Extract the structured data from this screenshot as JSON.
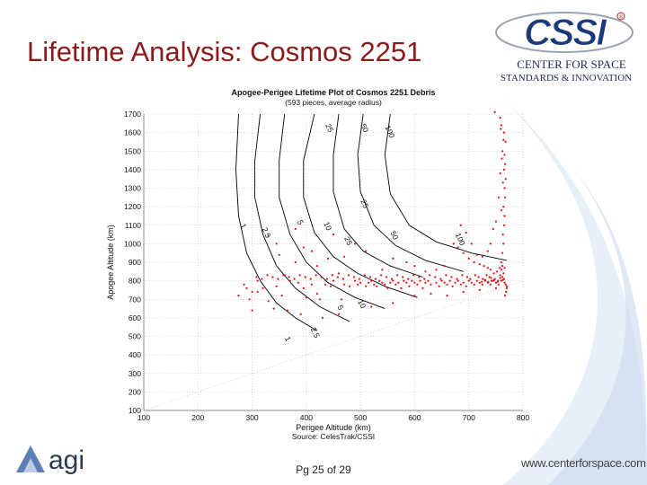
{
  "slide": {
    "title": "Lifetime Analysis: Cosmos 2251",
    "page_number": "Pg 25 of 29",
    "footer_url": "www.centerforspace.com"
  },
  "logos": {
    "cssi": {
      "acronym": "CSSI",
      "line1": "CENTER FOR SPACE",
      "line2": "STANDARDS & INNOVATION",
      "registered": "®"
    },
    "agi": {
      "text": "agi"
    }
  },
  "colors": {
    "title": "#8b1a1a",
    "points": "#e01010",
    "contours": "#000000",
    "swoosh": "#dde8f5"
  },
  "chart_data": {
    "type": "scatter",
    "title": "Apogee-Perigee Lifetime Plot of Cosmos 2251 Debris",
    "subtitle": "(593 pieces, average radius)",
    "xlabel": "Perigee Altitude (km)",
    "ylabel": "Apogee Altitude (km)",
    "source": "Source: CelesTrak/CSSI",
    "xlim": [
      100,
      800
    ],
    "ylim": [
      100,
      1700
    ],
    "xticks": [
      100,
      200,
      300,
      400,
      500,
      600,
      700,
      800
    ],
    "yticks": [
      100,
      200,
      300,
      400,
      500,
      600,
      700,
      800,
      900,
      1000,
      1100,
      1200,
      1300,
      1400,
      1500,
      1600,
      1700
    ],
    "grid": "dotted",
    "contours": [
      {
        "label": "1",
        "points": [
          [
            275,
            1700
          ],
          [
            270,
            1400
          ],
          [
            275,
            1150
          ],
          [
            290,
            950
          ],
          [
            315,
            800
          ],
          [
            345,
            680
          ],
          [
            380,
            600
          ],
          [
            420,
            530
          ]
        ]
      },
      {
        "label": "2.5",
        "points": [
          [
            315,
            1700
          ],
          [
            305,
            1450
          ],
          [
            305,
            1250
          ],
          [
            320,
            1050
          ],
          [
            345,
            880
          ],
          [
            380,
            760
          ],
          [
            425,
            660
          ],
          [
            480,
            580
          ]
        ]
      },
      {
        "label": "5",
        "points": [
          [
            360,
            1700
          ],
          [
            350,
            1450
          ],
          [
            350,
            1250
          ],
          [
            370,
            1050
          ],
          [
            400,
            900
          ],
          [
            440,
            790
          ],
          [
            490,
            710
          ],
          [
            545,
            650
          ]
        ]
      },
      {
        "label": "10",
        "points": [
          [
            415,
            1700
          ],
          [
            395,
            1450
          ],
          [
            395,
            1250
          ],
          [
            415,
            1060
          ],
          [
            450,
            930
          ],
          [
            495,
            840
          ],
          [
            545,
            770
          ],
          [
            605,
            710
          ]
        ]
      },
      {
        "label": "25",
        "points": [
          [
            460,
            1700
          ],
          [
            450,
            1480
          ],
          [
            450,
            1280
          ],
          [
            470,
            1080
          ],
          [
            505,
            960
          ],
          [
            555,
            880
          ],
          [
            615,
            820
          ]
        ]
      },
      {
        "label": "50",
        "points": [
          [
            505,
            1700
          ],
          [
            495,
            1480
          ],
          [
            500,
            1280
          ],
          [
            525,
            1100
          ],
          [
            565,
            990
          ],
          [
            620,
            910
          ],
          [
            690,
            850
          ]
        ]
      },
      {
        "label": "100",
        "points": [
          [
            555,
            1700
          ],
          [
            545,
            1480
          ],
          [
            555,
            1270
          ],
          [
            590,
            1100
          ],
          [
            640,
            1010
          ],
          [
            705,
            950
          ],
          [
            770,
            910
          ]
        ]
      }
    ],
    "contour_labels": [
      {
        "label": "25",
        "x": 435,
        "y": 1640
      },
      {
        "label": "50",
        "x": 500,
        "y": 1640
      },
      {
        "label": "100",
        "x": 545,
        "y": 1630
      },
      {
        "label": "1",
        "x": 278,
        "y": 1100
      },
      {
        "label": "2.5",
        "x": 318,
        "y": 1080
      },
      {
        "label": "5",
        "x": 383,
        "y": 1120
      },
      {
        "label": "10",
        "x": 432,
        "y": 1110
      },
      {
        "label": "25",
        "x": 470,
        "y": 1030
      },
      {
        "label": "50",
        "x": 555,
        "y": 1060
      },
      {
        "label": "100",
        "x": 675,
        "y": 1050
      },
      {
        "label": "25",
        "x": 500,
        "y": 1230
      },
      {
        "label": "10",
        "x": 495,
        "y": 690
      },
      {
        "label": "5",
        "x": 457,
        "y": 660
      },
      {
        "label": "2.5",
        "x": 408,
        "y": 540
      },
      {
        "label": "1",
        "x": 360,
        "y": 490
      }
    ],
    "series": [
      {
        "points": [
          [
            295,
            700
          ],
          [
            290,
            760
          ],
          [
            300,
            740
          ],
          [
            310,
            800
          ],
          [
            320,
            760
          ],
          [
            330,
            690
          ],
          [
            345,
            770
          ],
          [
            355,
            720
          ],
          [
            365,
            640
          ],
          [
            370,
            800
          ],
          [
            385,
            790
          ],
          [
            395,
            760
          ],
          [
            400,
            710
          ],
          [
            410,
            780
          ],
          [
            420,
            730
          ],
          [
            425,
            700
          ],
          [
            435,
            780
          ],
          [
            445,
            770
          ],
          [
            450,
            800
          ],
          [
            460,
            840
          ],
          [
            465,
            700
          ],
          [
            470,
            780
          ],
          [
            480,
            770
          ],
          [
            490,
            800
          ],
          [
            495,
            780
          ],
          [
            500,
            790
          ],
          [
            510,
            770
          ],
          [
            515,
            790
          ],
          [
            520,
            800
          ],
          [
            525,
            780
          ],
          [
            530,
            770
          ],
          [
            535,
            800
          ],
          [
            540,
            790
          ],
          [
            545,
            780
          ],
          [
            550,
            760
          ],
          [
            555,
            790
          ],
          [
            560,
            800
          ],
          [
            565,
            780
          ],
          [
            570,
            790
          ],
          [
            575,
            760
          ],
          [
            580,
            800
          ],
          [
            585,
            790
          ],
          [
            590,
            770
          ],
          [
            595,
            800
          ],
          [
            600,
            790
          ],
          [
            605,
            780
          ],
          [
            610,
            800
          ],
          [
            615,
            760
          ],
          [
            620,
            790
          ],
          [
            625,
            800
          ],
          [
            630,
            780
          ],
          [
            640,
            790
          ],
          [
            645,
            770
          ],
          [
            650,
            800
          ],
          [
            655,
            790
          ],
          [
            660,
            780
          ],
          [
            665,
            800
          ],
          [
            670,
            770
          ],
          [
            675,
            790
          ],
          [
            680,
            800
          ],
          [
            685,
            780
          ],
          [
            690,
            790
          ],
          [
            695,
            770
          ],
          [
            700,
            800
          ],
          [
            705,
            790
          ],
          [
            710,
            780
          ],
          [
            715,
            800
          ],
          [
            720,
            790
          ],
          [
            725,
            780
          ],
          [
            730,
            800
          ],
          [
            735,
            790
          ],
          [
            740,
            780
          ],
          [
            745,
            800
          ],
          [
            750,
            790
          ],
          [
            755,
            780
          ],
          [
            760,
            800
          ],
          [
            762,
            820
          ],
          [
            765,
            810
          ],
          [
            758,
            830
          ],
          [
            752,
            850
          ],
          [
            746,
            840
          ],
          [
            740,
            860
          ],
          [
            735,
            870
          ],
          [
            728,
            880
          ],
          [
            720,
            890
          ],
          [
            710,
            900
          ],
          [
            700,
            920
          ],
          [
            690,
            950
          ],
          [
            680,
            980
          ],
          [
            672,
            1000
          ],
          [
            760,
            900
          ],
          [
            762,
            950
          ],
          [
            764,
            1000
          ],
          [
            763,
            1050
          ],
          [
            765,
            1100
          ],
          [
            766,
            1150
          ],
          [
            764,
            1200
          ],
          [
            767,
            1250
          ],
          [
            766,
            1300
          ],
          [
            768,
            1350
          ],
          [
            765,
            1400
          ],
          [
            767,
            1430
          ],
          [
            766,
            1480
          ],
          [
            768,
            1550
          ],
          [
            765,
            1600
          ],
          [
            758,
            1680
          ],
          [
            760,
            1640
          ],
          [
            762,
            1500
          ],
          [
            758,
            1380
          ],
          [
            755,
            1250
          ],
          [
            750,
            1120
          ],
          [
            745,
            1080
          ],
          [
            740,
            1000
          ],
          [
            735,
            960
          ],
          [
            725,
            930
          ],
          [
            715,
            940
          ],
          [
            705,
            1000
          ],
          [
            695,
            1060
          ],
          [
            685,
            1100
          ],
          [
            655,
            880
          ],
          [
            640,
            860
          ],
          [
            620,
            850
          ],
          [
            600,
            880
          ],
          [
            585,
            900
          ],
          [
            560,
            920
          ],
          [
            540,
            860
          ],
          [
            510,
            960
          ],
          [
            490,
            1000
          ],
          [
            470,
            930
          ],
          [
            450,
            1050
          ],
          [
            440,
            920
          ],
          [
            420,
            880
          ],
          [
            410,
            960
          ],
          [
            395,
            980
          ],
          [
            380,
            900
          ],
          [
            350,
            940
          ],
          [
            345,
            1000
          ],
          [
            360,
            830
          ],
          [
            380,
            1080
          ],
          [
            330,
            1040
          ],
          [
            310,
            740
          ],
          [
            300,
            640
          ],
          [
            285,
            780
          ],
          [
            275,
            720
          ],
          [
            340,
            650
          ],
          [
            390,
            620
          ],
          [
            430,
            600
          ],
          [
            460,
            620
          ],
          [
            520,
            660
          ],
          [
            560,
            680
          ],
          [
            600,
            720
          ],
          [
            630,
            730
          ],
          [
            660,
            720
          ],
          [
            690,
            740
          ],
          [
            720,
            750
          ],
          [
            750,
            760
          ],
          [
            768,
            780
          ],
          [
            770,
            760
          ],
          [
            769,
            740
          ],
          [
            767,
            720
          ],
          [
            764,
            840
          ],
          [
            766,
            870
          ],
          [
            762,
            880
          ],
          [
            760,
            860
          ],
          [
            757,
            870
          ],
          [
            754,
            800
          ],
          [
            748,
            810
          ],
          [
            742,
            800
          ],
          [
            738,
            820
          ],
          [
            733,
            830
          ],
          [
            726,
            810
          ],
          [
            718,
            820
          ],
          [
            712,
            830
          ],
          [
            703,
            810
          ],
          [
            697,
            820
          ],
          [
            688,
            830
          ],
          [
            678,
            810
          ],
          [
            668,
            820
          ],
          [
            658,
            830
          ],
          [
            648,
            810
          ],
          [
            638,
            820
          ],
          [
            628,
            830
          ],
          [
            618,
            810
          ],
          [
            608,
            820
          ],
          [
            598,
            830
          ],
          [
            588,
            810
          ],
          [
            578,
            820
          ],
          [
            568,
            830
          ],
          [
            558,
            810
          ],
          [
            548,
            820
          ],
          [
            538,
            830
          ],
          [
            528,
            810
          ],
          [
            518,
            820
          ],
          [
            508,
            830
          ],
          [
            498,
            810
          ],
          [
            488,
            820
          ],
          [
            478,
            830
          ],
          [
            468,
            810
          ],
          [
            458,
            820
          ],
          [
            448,
            830
          ],
          [
            438,
            810
          ],
          [
            428,
            820
          ],
          [
            418,
            830
          ],
          [
            408,
            810
          ],
          [
            398,
            820
          ],
          [
            388,
            830
          ],
          [
            378,
            810
          ],
          [
            368,
            820
          ],
          [
            358,
            830
          ],
          [
            348,
            810
          ],
          [
            338,
            820
          ],
          [
            328,
            830
          ],
          [
            318,
            810
          ],
          [
            308,
            820
          ],
          [
            760,
            1180
          ],
          [
            763,
            1330
          ],
          [
            761,
            1460
          ],
          [
            764,
            1560
          ],
          [
            759,
            1620
          ],
          [
            748,
            1710
          ],
          [
            770,
            770
          ],
          [
            766,
            790
          ],
          [
            763,
            805
          ],
          [
            758,
            815
          ],
          [
            753,
            795
          ],
          [
            747,
            805
          ],
          [
            741,
            815
          ],
          [
            736,
            795
          ],
          [
            730,
            805
          ],
          [
            724,
            795
          ]
        ]
      }
    ]
  }
}
